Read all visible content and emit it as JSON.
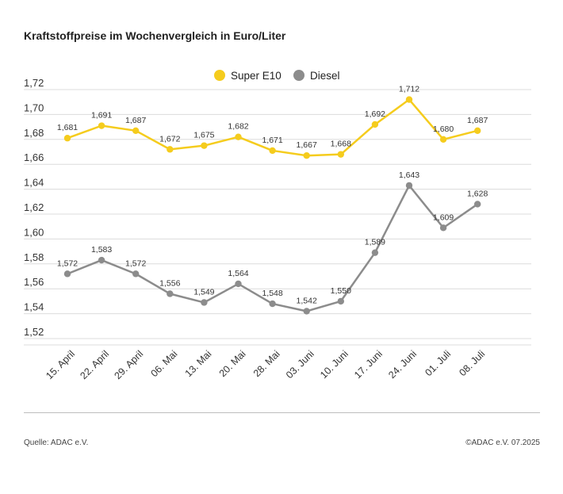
{
  "title": "Kraftstoffpreise im Wochenvergleich in Euro/Liter",
  "footer": {
    "source": "Quelle: ADAC e.V.",
    "copyright": "©ADAC e.V. 07.2025"
  },
  "chart_data": {
    "type": "line",
    "title": "Kraftstoffpreise im Wochenvergleich in Euro/Liter",
    "xlabel": "",
    "ylabel": "",
    "ylim": [
      1.52,
      1.72
    ],
    "y_ticks": [
      "1,52",
      "1,54",
      "1,56",
      "1,58",
      "1,60",
      "1,62",
      "1,64",
      "1,66",
      "1,68",
      "1,70",
      "1,72"
    ],
    "grid": true,
    "legend_position": "top-center",
    "categories": [
      "15. April",
      "22. April",
      "29. April",
      "06. Mai",
      "13. Mai",
      "20. Mai",
      "28. Mai",
      "03. Juni",
      "10. Juni",
      "17. Juni",
      "24. Juni",
      "01. Juli",
      "08. Juli"
    ],
    "series": [
      {
        "name": "Super E10",
        "color": "#f5cc1d",
        "values": [
          1.681,
          1.691,
          1.687,
          1.672,
          1.675,
          1.682,
          1.671,
          1.667,
          1.668,
          1.692,
          1.712,
          1.68,
          1.687
        ],
        "labels": [
          "1,681",
          "1,691",
          "1,687",
          "1,672",
          "1,675",
          "1,682",
          "1,671",
          "1,667",
          "1,668",
          "1,692",
          "1,712",
          "1,680",
          "1,687"
        ]
      },
      {
        "name": "Diesel",
        "color": "#8c8c8c",
        "values": [
          1.572,
          1.583,
          1.572,
          1.556,
          1.549,
          1.564,
          1.548,
          1.542,
          1.55,
          1.589,
          1.643,
          1.609,
          1.628
        ],
        "labels": [
          "1,572",
          "1,583",
          "1,572",
          "1,556",
          "1,549",
          "1,564",
          "1,548",
          "1,542",
          "1,550",
          "1,589",
          "1,643",
          "1,609",
          "1,628"
        ]
      }
    ]
  }
}
